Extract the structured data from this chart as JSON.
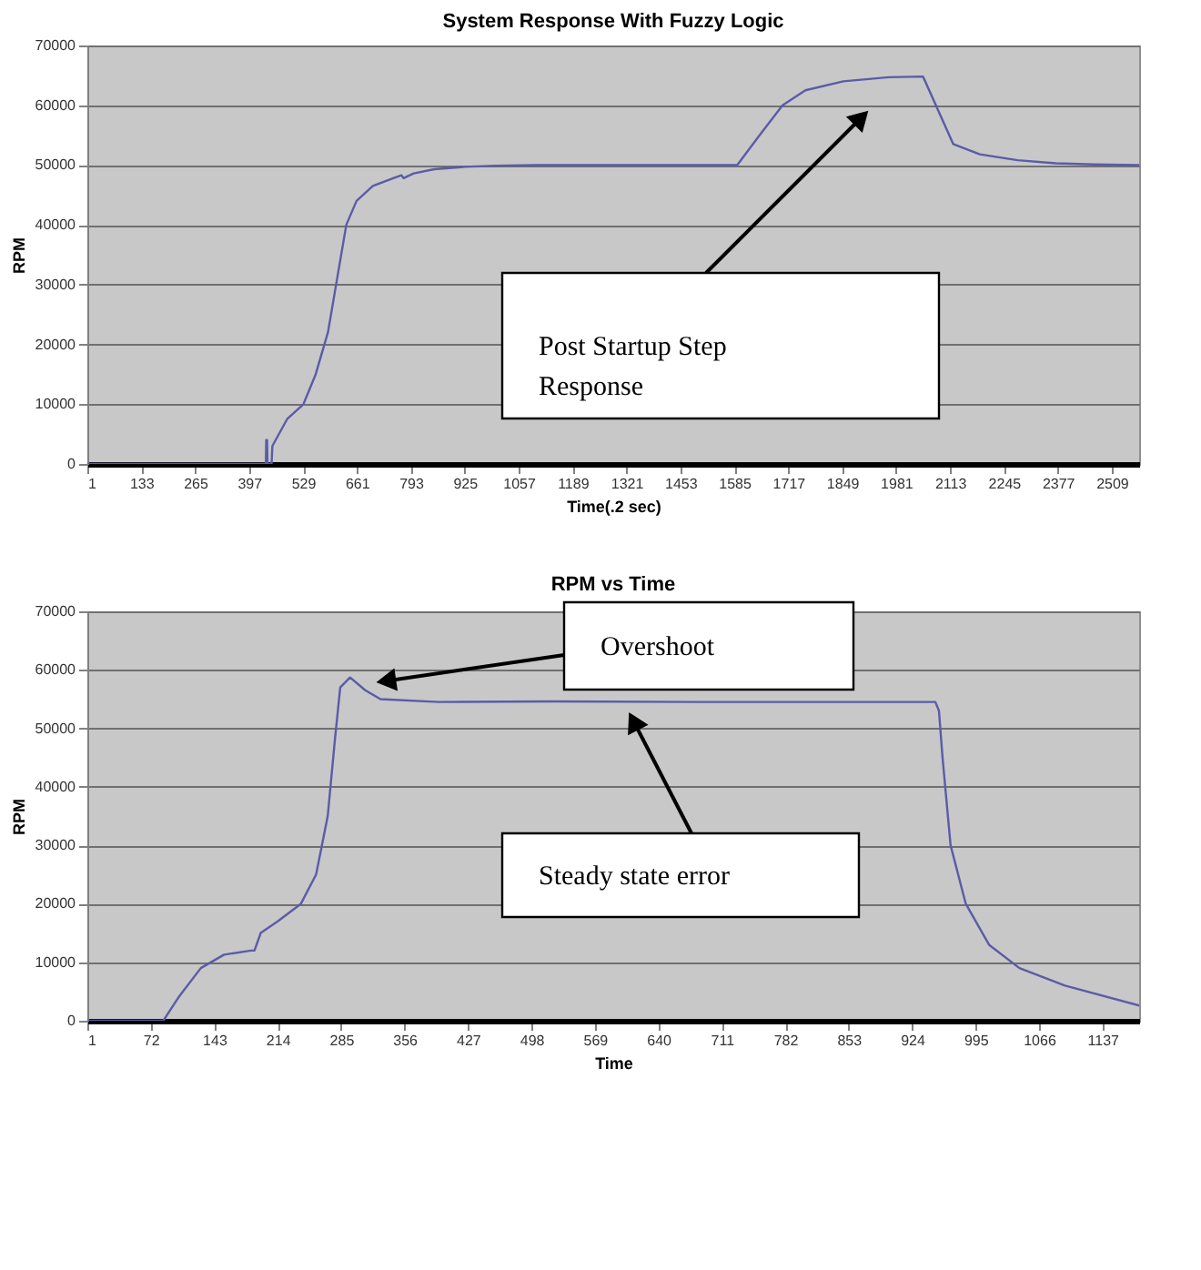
{
  "chart_data": [
    {
      "type": "line",
      "title": "System Response With Fuzzy Logic",
      "xlabel": "Time(.2 sec)",
      "ylabel": "RPM",
      "x": [
        1,
        438,
        439,
        441,
        442,
        452,
        454,
        490,
        530,
        560,
        590,
        610,
        635,
        660,
        700,
        750,
        770,
        775,
        800,
        850,
        925,
        1000,
        1100,
        1592,
        1647,
        1703,
        1759,
        1852,
        1963,
        2047,
        2121,
        2186,
        2279,
        2372,
        2465,
        2576
      ],
      "series": [
        {
          "color": "#5b5ba8",
          "values": [
            0,
            0,
            4000,
            4000,
            0,
            0,
            3000,
            7500,
            10000,
            15000,
            22000,
            30000,
            40000,
            44000,
            46500,
            47800,
            48300,
            47800,
            48600,
            49300,
            49700,
            49900,
            50000,
            50000,
            55000,
            60000,
            62500,
            64000,
            64700,
            64800,
            53500,
            51800,
            50800,
            50300,
            50100,
            50000
          ]
        }
      ],
      "xlim": [
        1,
        2576
      ],
      "xticks": [
        1,
        133,
        265,
        397,
        529,
        661,
        793,
        925,
        1057,
        1189,
        1321,
        1453,
        1585,
        1717,
        1849,
        1981,
        2113,
        2245,
        2377,
        2509
      ],
      "ylim": [
        0,
        70000
      ],
      "yticks": [
        0,
        10000,
        20000,
        30000,
        40000,
        50000,
        60000,
        70000
      ],
      "grid": "y",
      "marker": "none",
      "line_style": "solid",
      "annotations": [
        "Post Startup Step Response"
      ]
    },
    {
      "type": "line",
      "title": "RPM vs Time",
      "xlabel": "Time",
      "ylabel": "RPM",
      "x": [
        1,
        86,
        103,
        128,
        154,
        184,
        188,
        195,
        214,
        240,
        257,
        270,
        278,
        284,
        295,
        312,
        329,
        394,
        522,
        693,
        950,
        954,
        958,
        967,
        984,
        1010,
        1044,
        1095,
        1178
      ],
      "series": [
        {
          "color": "#5b5ba8",
          "values": [
            0,
            0,
            4000,
            9000,
            11300,
            12000,
            12000,
            15000,
            17000,
            20000,
            25000,
            35000,
            48000,
            57000,
            58700,
            56500,
            55000,
            54500,
            54600,
            54500,
            54500,
            53000,
            45000,
            30000,
            20000,
            13000,
            9000,
            6000,
            2600
          ]
        }
      ],
      "xlim": [
        1,
        1178
      ],
      "xticks": [
        1,
        72,
        143,
        214,
        285,
        356,
        427,
        498,
        569,
        640,
        711,
        782,
        853,
        924,
        995,
        1066,
        1137
      ],
      "ylim": [
        0,
        70000
      ],
      "yticks": [
        0,
        10000,
        20000,
        30000,
        40000,
        50000,
        60000,
        70000
      ],
      "grid": "y",
      "marker": "none",
      "line_style": "solid",
      "annotations": [
        "Overshoot",
        "Steady state error"
      ]
    }
  ]
}
